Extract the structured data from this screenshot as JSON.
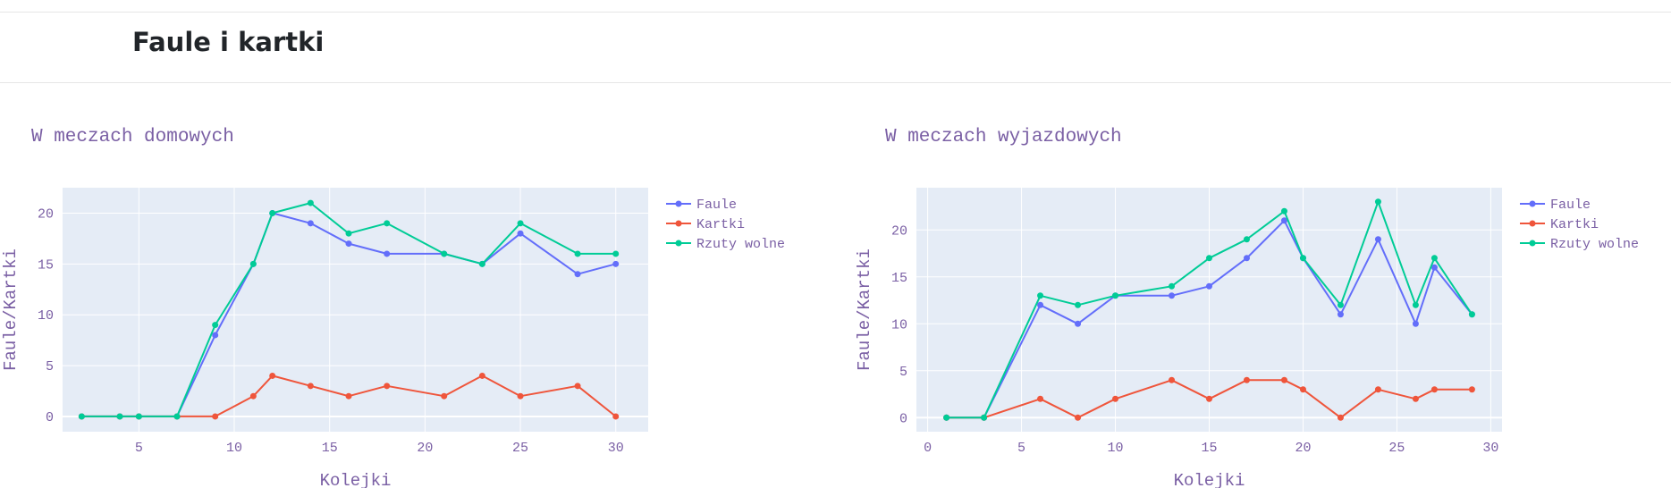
{
  "header": {
    "title": "Faule i kartki"
  },
  "colors": {
    "faule": "#636efa",
    "kartki": "#ef553b",
    "rzuty": "#00cc96",
    "plot_bg": "#e5ecf6",
    "text": "#7a5fa4"
  },
  "chart_data": [
    {
      "type": "line",
      "title": "W meczach domowych",
      "xlabel": "Kolejki",
      "ylabel": "Faule/Kartki",
      "xlim": [
        1,
        31.7
      ],
      "ylim": [
        -1.5,
        22.5
      ],
      "xticks": [
        5,
        10,
        15,
        20,
        25,
        30
      ],
      "yticks": [
        0,
        5,
        10,
        15,
        20
      ],
      "legend": "right",
      "grid": true,
      "series": [
        {
          "name": "Faule",
          "color": "#636efa",
          "points": [
            [
              2,
              0
            ],
            [
              4,
              0
            ],
            [
              5,
              0
            ],
            [
              7,
              0
            ],
            [
              9,
              8
            ],
            [
              11,
              15
            ],
            [
              12,
              20
            ],
            [
              14,
              19
            ],
            [
              16,
              17
            ],
            [
              18,
              16
            ],
            [
              21,
              16
            ],
            [
              23,
              15
            ],
            [
              25,
              18
            ],
            [
              28,
              14
            ],
            [
              30,
              15
            ]
          ]
        },
        {
          "name": "Kartki",
          "color": "#ef553b",
          "points": [
            [
              2,
              0
            ],
            [
              4,
              0
            ],
            [
              5,
              0
            ],
            [
              7,
              0
            ],
            [
              9,
              0
            ],
            [
              11,
              2
            ],
            [
              12,
              4
            ],
            [
              14,
              3
            ],
            [
              16,
              2
            ],
            [
              18,
              3
            ],
            [
              21,
              2
            ],
            [
              23,
              4
            ],
            [
              25,
              2
            ],
            [
              28,
              3
            ],
            [
              30,
              0
            ]
          ]
        },
        {
          "name": "Rzuty wolne",
          "color": "#00cc96",
          "points": [
            [
              2,
              0
            ],
            [
              4,
              0
            ],
            [
              5,
              0
            ],
            [
              7,
              0
            ],
            [
              9,
              9
            ],
            [
              11,
              15
            ],
            [
              12,
              20
            ],
            [
              14,
              21
            ],
            [
              16,
              18
            ],
            [
              18,
              19
            ],
            [
              21,
              16
            ],
            [
              23,
              15
            ],
            [
              25,
              19
            ],
            [
              28,
              16
            ],
            [
              30,
              16
            ]
          ]
        }
      ]
    },
    {
      "type": "line",
      "title": "W meczach wyjazdowych",
      "xlabel": "Kolejki",
      "ylabel": "Faule/Kartki",
      "xlim": [
        -0.6,
        30.6
      ],
      "ylim": [
        -1.5,
        24.5
      ],
      "xticks": [
        0,
        5,
        10,
        15,
        20,
        25,
        30
      ],
      "yticks": [
        0,
        5,
        10,
        15,
        20
      ],
      "legend": "right",
      "grid": true,
      "series": [
        {
          "name": "Faule",
          "color": "#636efa",
          "points": [
            [
              1,
              0
            ],
            [
              3,
              0
            ],
            [
              6,
              12
            ],
            [
              8,
              10
            ],
            [
              10,
              13
            ],
            [
              13,
              13
            ],
            [
              15,
              14
            ],
            [
              17,
              17
            ],
            [
              19,
              21
            ],
            [
              20,
              17
            ],
            [
              22,
              11
            ],
            [
              24,
              19
            ],
            [
              26,
              10
            ],
            [
              27,
              16
            ],
            [
              29,
              11
            ]
          ]
        },
        {
          "name": "Kartki",
          "color": "#ef553b",
          "points": [
            [
              1,
              0
            ],
            [
              3,
              0
            ],
            [
              6,
              2
            ],
            [
              8,
              0
            ],
            [
              10,
              2
            ],
            [
              13,
              4
            ],
            [
              15,
              2
            ],
            [
              17,
              4
            ],
            [
              19,
              4
            ],
            [
              20,
              3
            ],
            [
              22,
              0
            ],
            [
              24,
              3
            ],
            [
              26,
              2
            ],
            [
              27,
              3
            ],
            [
              29,
              3
            ]
          ]
        },
        {
          "name": "Rzuty wolne",
          "color": "#00cc96",
          "points": [
            [
              1,
              0
            ],
            [
              3,
              0
            ],
            [
              6,
              13
            ],
            [
              8,
              12
            ],
            [
              10,
              13
            ],
            [
              13,
              14
            ],
            [
              15,
              17
            ],
            [
              17,
              19
            ],
            [
              19,
              22
            ],
            [
              20,
              17
            ],
            [
              22,
              12
            ],
            [
              24,
              23
            ],
            [
              26,
              12
            ],
            [
              27,
              17
            ],
            [
              29,
              11
            ]
          ]
        }
      ]
    }
  ]
}
